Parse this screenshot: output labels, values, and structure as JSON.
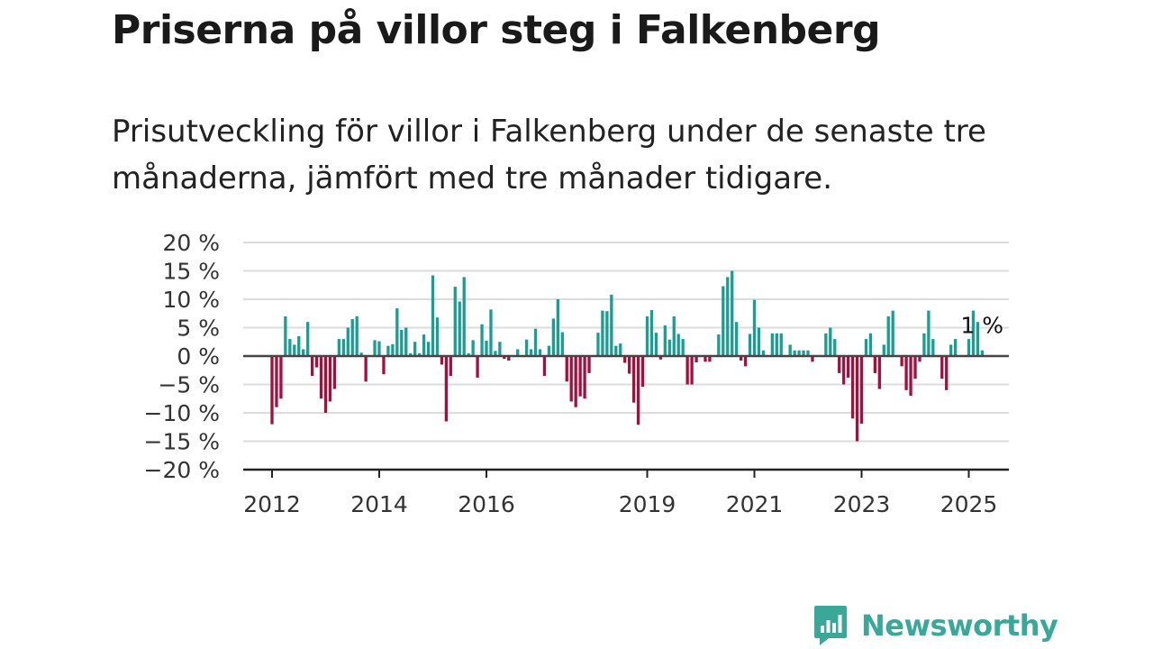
{
  "title": "Priserna på villor steg i Falkenberg",
  "subtitle": "Prisutveckling för villor i Falkenberg under de senaste tre månaderna, jämfört med tre månader tidigare.",
  "brand": {
    "name": "Newsworthy",
    "color": "#3aa898"
  },
  "colors": {
    "positive": "#1a9e94",
    "negative": "#a3103e",
    "grid": "#dcdcdc",
    "axis": "#444444"
  },
  "chart_data": {
    "type": "bar",
    "title": "",
    "xlabel": "",
    "ylabel": "",
    "ylim": [
      -20,
      20
    ],
    "y_ticks": [
      20,
      15,
      10,
      5,
      0,
      -5,
      -10,
      -15,
      -20
    ],
    "y_tick_labels": [
      "20 %",
      "15 %",
      "10 %",
      "5 %",
      "0 %",
      "−5 %",
      "−10 %",
      "−15 %",
      "−20 %"
    ],
    "x_ticks": [
      2012,
      2014,
      2016,
      2019,
      2021,
      2023,
      2025
    ],
    "x_tick_labels": [
      "2012",
      "2014",
      "2016",
      "2019",
      "2021",
      "2023",
      "2025"
    ],
    "grid": true,
    "annotation": {
      "text": "1 %",
      "value": 1
    },
    "x_start": "2012-01",
    "values": [
      -12,
      -9,
      -7.5,
      7,
      3,
      2,
      3.5,
      1.2,
      6,
      -3.5,
      -2,
      -7.5,
      -10,
      -8,
      -5.8,
      3,
      3,
      5,
      6.5,
      7,
      0.6,
      -4.5,
      0,
      2.8,
      2.6,
      -3.2,
      1.8,
      2.1,
      8.4,
      4.6,
      5,
      0.5,
      2.5,
      0.5,
      3.8,
      2.5,
      14.2,
      6.8,
      -1.5,
      -11.5,
      -3.5,
      12.2,
      9.6,
      13.9,
      0.5,
      2.8,
      -3.8,
      5.6,
      2.7,
      8.2,
      0.9,
      2.5,
      -0.5,
      -0.8,
      0,
      1.2,
      0,
      2.9,
      1.2,
      4.8,
      1.2,
      -3.5,
      1.8,
      6.6,
      10,
      4.2,
      -4.5,
      -8,
      -9,
      -7.1,
      -7.5,
      -3,
      0,
      4.1,
      8,
      7.9,
      10.8,
      1.8,
      2.2,
      -1.2,
      -3.1,
      -8.2,
      -12.1,
      -5.4,
      7,
      8.1,
      4.1,
      -0.6,
      5.4,
      2.9,
      7,
      3.9,
      3,
      -5,
      -5,
      -1.1,
      0,
      -1,
      -1,
      0,
      3.8,
      12.3,
      13.9,
      15,
      6,
      -0.8,
      -1.8,
      3.9,
      9.9,
      5,
      1,
      0,
      4,
      4,
      4,
      0,
      2,
      1,
      1,
      1,
      1,
      -1,
      0,
      0,
      4,
      5,
      3,
      -3,
      -5,
      -3.8,
      -11,
      -15,
      -11.9,
      3,
      4,
      -3,
      -5.8,
      2,
      7,
      8,
      0,
      -1.8,
      -6,
      -7,
      -4,
      -1,
      4,
      8,
      3,
      0,
      -4,
      -6,
      2,
      3,
      0,
      0,
      3,
      8,
      6,
      1
    ]
  }
}
